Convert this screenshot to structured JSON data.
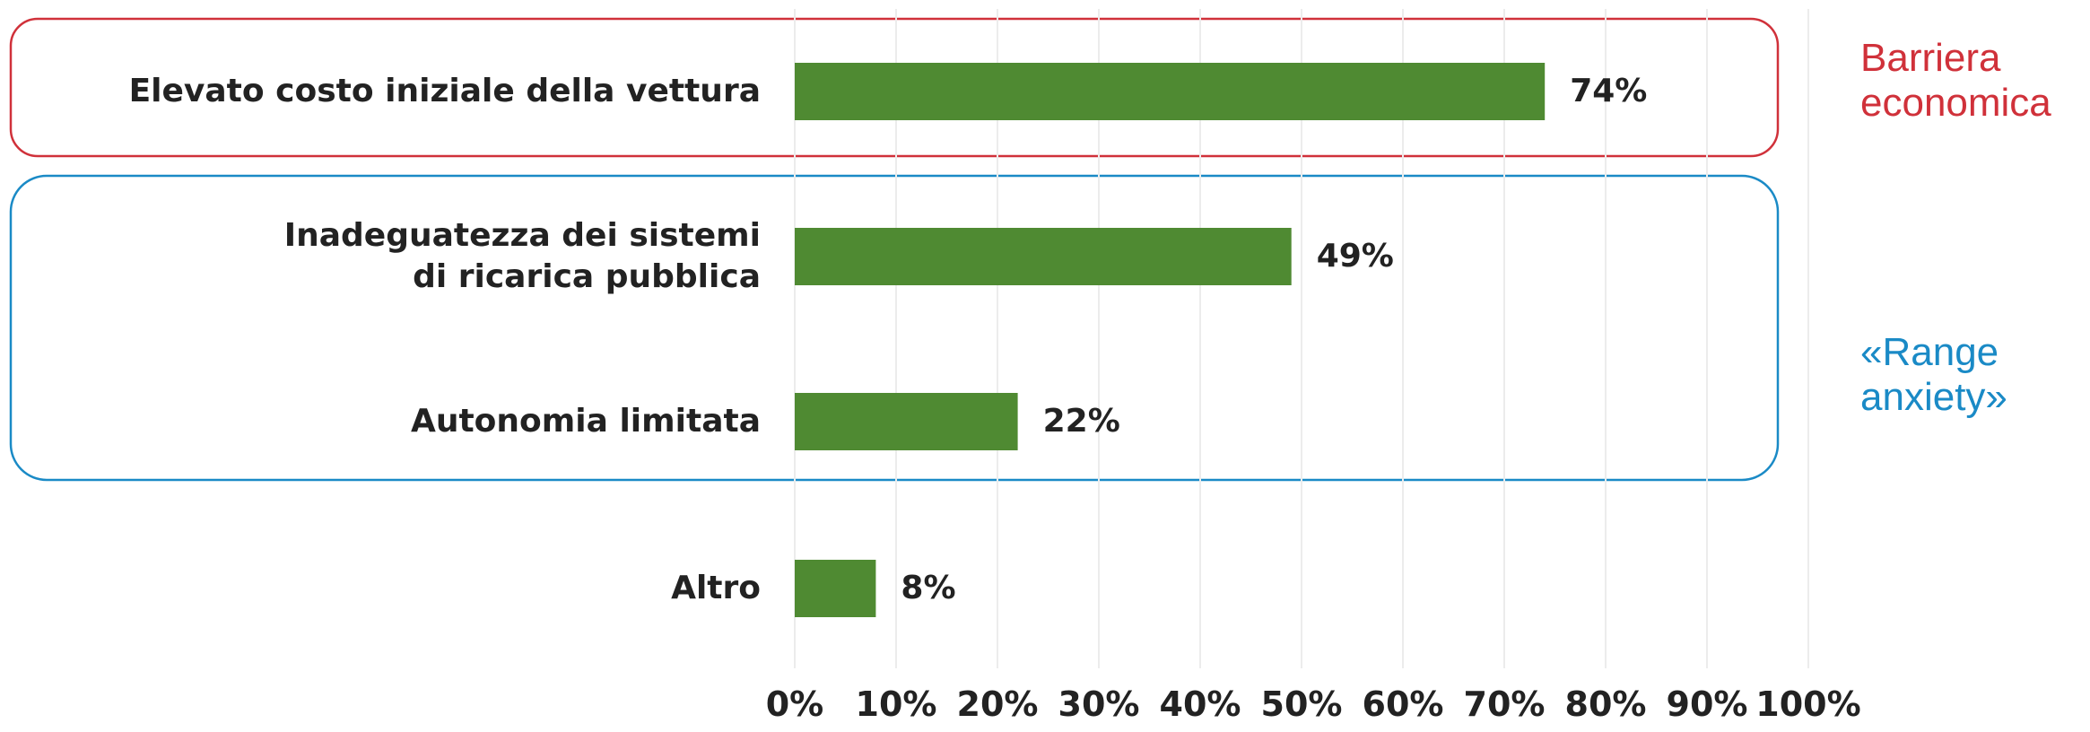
{
  "chart_data": {
    "type": "bar",
    "orientation": "horizontal",
    "categories": [
      "Elevato costo iniziale della vettura",
      "Inadeguatezza dei sistemi\ndi ricarica pubblica",
      "Autonomia limitata",
      "Altro"
    ],
    "values": [
      74,
      49,
      22,
      8
    ],
    "value_labels": [
      "74%",
      "49%",
      "22%",
      "8%"
    ],
    "color": "#4f8a32",
    "xlim": [
      0,
      100
    ],
    "xticks": [
      {
        "value": 0,
        "label": "0%"
      },
      {
        "value": 10,
        "label": "10%"
      },
      {
        "value": 20,
        "label": "20%"
      },
      {
        "value": 30,
        "label": "30%"
      },
      {
        "value": 40,
        "label": "40%"
      },
      {
        "value": 50,
        "label": "50%"
      },
      {
        "value": 60,
        "label": "60%"
      },
      {
        "value": 70,
        "label": "70%"
      },
      {
        "value": 80,
        "label": "80%"
      },
      {
        "value": 90,
        "label": "90%"
      },
      {
        "value": 100,
        "label": "100%"
      }
    ],
    "grid": true,
    "annotations": [
      "Barriera\neconomica",
      "«Range\nanxiety»"
    ]
  }
}
